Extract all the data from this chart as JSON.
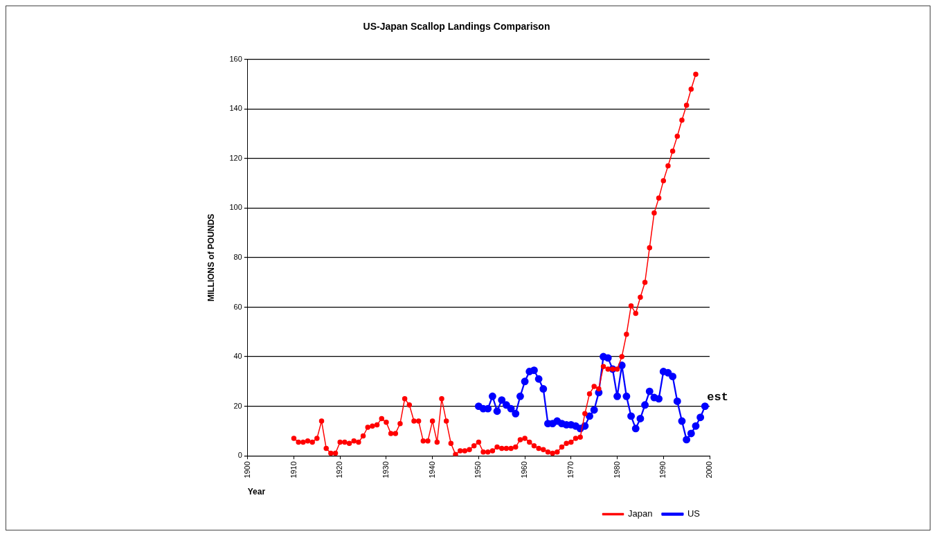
{
  "chart_data": {
    "type": "line",
    "title": "US-Japan Scallop Landings Comparison",
    "xlabel": "Year",
    "ylabel": "MILLIONS of POUNDS",
    "xlim": [
      1900,
      2000
    ],
    "xticks": [
      1900,
      1910,
      1920,
      1930,
      1940,
      1950,
      1960,
      1970,
      1980,
      1990,
      2000
    ],
    "ylim": [
      0,
      160
    ],
    "yticks": [
      0,
      20,
      40,
      60,
      80,
      100,
      120,
      140,
      160
    ],
    "grid": "y",
    "legend": "bottom",
    "marker": "circle",
    "line_style": "solid",
    "annotations": [
      {
        "text": "est",
        "x": 1999,
        "y": 20
      }
    ],
    "series": [
      {
        "name": "Japan",
        "color": "#ff0000",
        "x": [
          1910,
          1911,
          1912,
          1913,
          1914,
          1915,
          1916,
          1917,
          1918,
          1919,
          1920,
          1921,
          1922,
          1923,
          1924,
          1925,
          1926,
          1927,
          1928,
          1929,
          1930,
          1931,
          1932,
          1933,
          1934,
          1935,
          1936,
          1937,
          1938,
          1939,
          1940,
          1941,
          1942,
          1943,
          1944,
          1945,
          1946,
          1947,
          1948,
          1949,
          1950,
          1951,
          1952,
          1953,
          1954,
          1955,
          1956,
          1957,
          1958,
          1959,
          1960,
          1961,
          1962,
          1963,
          1964,
          1965,
          1966,
          1967,
          1968,
          1969,
          1970,
          1971,
          1972,
          1973,
          1974,
          1975,
          1976,
          1977,
          1978,
          1979,
          1980,
          1981,
          1982,
          1983,
          1984,
          1985,
          1986,
          1987,
          1988,
          1989,
          1990,
          1991,
          1992,
          1993,
          1994,
          1995,
          1996,
          1997
        ],
        "values": [
          7,
          5.5,
          5.5,
          6,
          5.5,
          7,
          14,
          3,
          1,
          1,
          5.5,
          5.5,
          5,
          6,
          5.5,
          8,
          11.5,
          12,
          12.5,
          15,
          13.5,
          9,
          9,
          13,
          23,
          20.5,
          14,
          14,
          6,
          6,
          14,
          5.5,
          23,
          14,
          5,
          0.5,
          2,
          2,
          2.5,
          4,
          5.5,
          1.5,
          1.5,
          2,
          3.5,
          3,
          3,
          3,
          3.5,
          6.5,
          7,
          5.5,
          4,
          3,
          2.5,
          1.5,
          1,
          1.5,
          3.5,
          5,
          5.5,
          7,
          7.5,
          17,
          25,
          28,
          27,
          36,
          35,
          35,
          35,
          40,
          49,
          60.5,
          57.5,
          64,
          70,
          84,
          98,
          104,
          111,
          117,
          123,
          129,
          135.5,
          141.5,
          148,
          154
        ]
      },
      {
        "name": "US",
        "color": "#0000ff",
        "x": [
          1950,
          1951,
          1952,
          1953,
          1954,
          1955,
          1956,
          1957,
          1958,
          1959,
          1960,
          1961,
          1962,
          1963,
          1964,
          1965,
          1966,
          1967,
          1968,
          1969,
          1970,
          1971,
          1972,
          1973,
          1974,
          1975,
          1976,
          1977,
          1978,
          1979,
          1980,
          1981,
          1982,
          1983,
          1984,
          1985,
          1986,
          1987,
          1988,
          1989,
          1990,
          1991,
          1992,
          1993,
          1994,
          1995,
          1996,
          1997,
          1998,
          1999
        ],
        "values": [
          20,
          19,
          19,
          24,
          18,
          22.5,
          20.5,
          19,
          17,
          24,
          30,
          34,
          34.5,
          31,
          27,
          13,
          13,
          14,
          13,
          12.5,
          12.5,
          12,
          11,
          12,
          16,
          18.5,
          25.5,
          40,
          39.5,
          35,
          24,
          36.5,
          24,
          16,
          11,
          15,
          20.5,
          26,
          23.5,
          23,
          34,
          33.5,
          32,
          22,
          14,
          6.5,
          9,
          12,
          15.5,
          20
        ]
      }
    ]
  }
}
